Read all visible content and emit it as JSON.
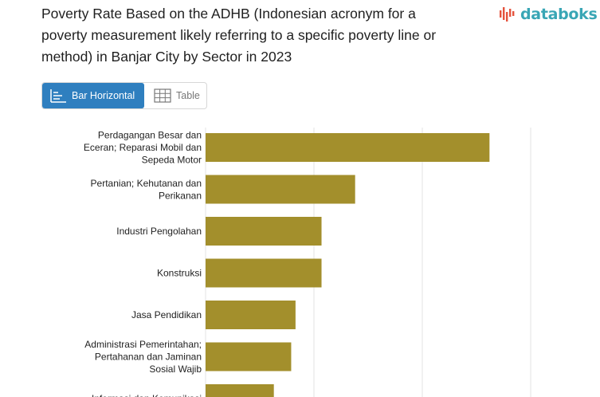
{
  "header": {
    "title": "Poverty Rate Based on the ADHB (Indonesian acronym for a poverty measurement likely referring to a specific poverty line or method) in Banjar City by Sector in 2023",
    "brand": "databoks"
  },
  "toggle": {
    "bar_label": "Bar Horizontal",
    "table_label": "Table",
    "bar_icon": "bar-chart-icon",
    "table_icon": "table-grid-icon"
  },
  "colors": {
    "bar": "#a38f2c",
    "grid": "#e3e3e3",
    "active": "#2f7fbf",
    "brand": "#39a6b5"
  },
  "chart_data": {
    "type": "bar",
    "orientation": "horizontal",
    "categories": [
      "Perdagangan Besar dan Eceran; Reparasi Mobil dan Sepeda Motor",
      "Pertanian; Kehutanan dan Perikanan",
      "Industri Pengolahan",
      "Konstruksi",
      "Jasa Pendidikan",
      "Administrasi Pemerintahan; Pertahanan dan Jaminan Sosial Wajib",
      "Informasi dan Komunikasi"
    ],
    "category_lines": [
      [
        "Perdagangan Besar dan",
        "Eceran; Reparasi Mobil dan",
        "Sepeda Motor"
      ],
      [
        "Pertanian; Kehutanan dan",
        "Perikanan"
      ],
      [
        "Industri Pengolahan"
      ],
      [
        "Konstruksi"
      ],
      [
        "Jasa Pendidikan"
      ],
      [
        "Administrasi Pemerintahan;",
        "Pertahanan dan Jaminan",
        "Sosial Wajib"
      ],
      [
        "Informasi dan Komunikasi"
      ]
    ],
    "values": [
      26.2,
      13.8,
      10.7,
      10.7,
      8.3,
      7.9,
      6.3
    ],
    "xlim": [
      0,
      30
    ],
    "grid": true
  }
}
